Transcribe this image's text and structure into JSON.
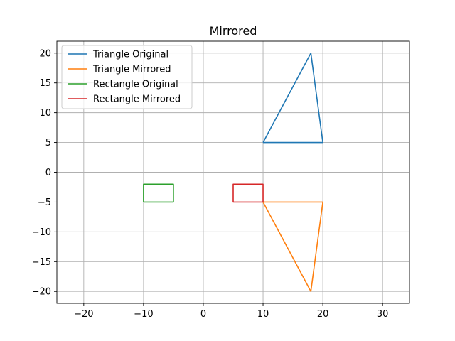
{
  "chart_data": {
    "type": "line",
    "title": "Mirrored",
    "xlabel": "",
    "ylabel": "",
    "xlim": [
      -24.5,
      34.5
    ],
    "ylim": [
      -22,
      22
    ],
    "xticks": [
      -20,
      -10,
      0,
      10,
      20,
      30
    ],
    "yticks": [
      -20,
      -15,
      -10,
      -5,
      0,
      5,
      10,
      15,
      20
    ],
    "xtick_labels": [
      "−20",
      "−10",
      "0",
      "10",
      "20",
      "30"
    ],
    "ytick_labels": [
      "−20",
      "−15",
      "−10",
      "−5",
      "0",
      "5",
      "10",
      "15",
      "20"
    ],
    "grid": true,
    "legend_position": "top-left",
    "series": [
      {
        "name": "Triangle Original",
        "color": "#1f77b4",
        "x": [
          10,
          20,
          18,
          10
        ],
        "y": [
          5,
          5,
          20,
          5
        ]
      },
      {
        "name": "Triangle Mirrored",
        "color": "#ff7f0e",
        "x": [
          10,
          20,
          18,
          10
        ],
        "y": [
          -5,
          -5,
          -20,
          -5
        ]
      },
      {
        "name": "Rectangle Original",
        "color": "#2ca02c",
        "x": [
          -10,
          -5,
          -5,
          -10,
          -10
        ],
        "y": [
          -5,
          -5,
          -2,
          -2,
          -5
        ]
      },
      {
        "name": "Rectangle Mirrored",
        "color": "#d62728",
        "x": [
          10,
          5,
          5,
          10,
          10
        ],
        "y": [
          -5,
          -5,
          -2,
          -2,
          -5
        ]
      }
    ]
  }
}
